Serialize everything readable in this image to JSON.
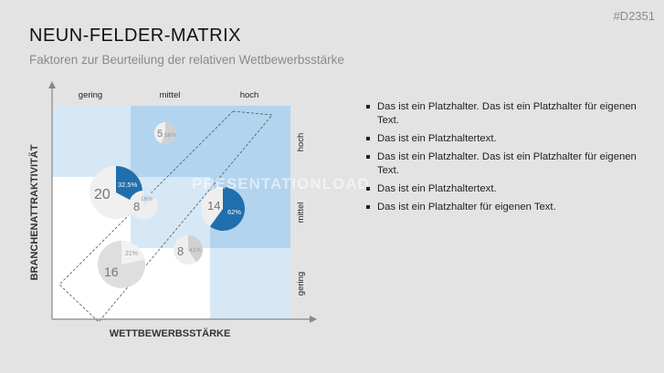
{
  "header": {
    "title": "NEUN-FELDER-MATRIX",
    "subtitle": "Faktoren zur Beurteilung der relativen Wettbewerbsstärke",
    "code": "#D2351"
  },
  "matrix": {
    "x_axis_label": "WETTBEWERBSSTÄRKE",
    "y_axis_label": "BRANCHENATTRAKTIVITÄT",
    "col_labels": [
      "gering",
      "mittel",
      "hoch"
    ],
    "row_labels": [
      "hoch",
      "mittel",
      "gering"
    ],
    "colors": {
      "dark": "#1f6fae",
      "light": "#d6e8f6",
      "mid": "#b3d4ee",
      "white": "#ffffff",
      "grey": "#d0d0d0"
    },
    "bubbles": [
      {
        "value": "5",
        "share_label": "56%",
        "share": 0.56,
        "style": "grey"
      },
      {
        "value": "20",
        "share_label": "32,5%",
        "share": 0.325,
        "style": "blue"
      },
      {
        "value": "8",
        "share_label": "16%",
        "share": 0.16,
        "style": "light"
      },
      {
        "value": "14",
        "share_label": "62%",
        "share": 0.62,
        "style": "blue"
      },
      {
        "value": "8",
        "share_label": "41%",
        "share": 0.41,
        "style": "grey"
      },
      {
        "value": "16",
        "share_label": "21%",
        "share": 0.21,
        "style": "grey"
      }
    ]
  },
  "watermark": "PRESENTATIONLOAD",
  "bullets": [
    "Das ist ein Platzhalter. Das ist ein Platzhalter für eigenen Text.",
    "Das ist ein Platzhaltertext.",
    "Das ist ein Platzhalter. Das ist ein Platzhalter für eigenen Text.",
    "Das ist ein Platzhaltertext.",
    "Das ist ein Platzhalter für eigenen Text."
  ]
}
